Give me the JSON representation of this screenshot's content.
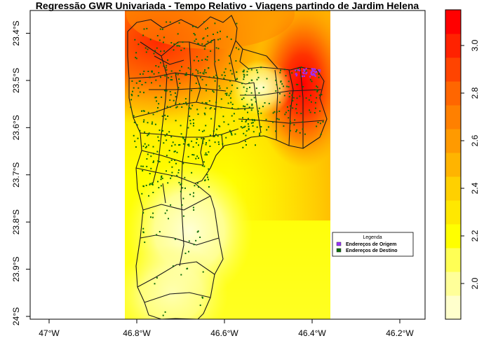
{
  "title": "Regressão GWR Univariada - Tempo Relativo - Viagens partindo de Jardim Helena",
  "map": {
    "x_ticks": [
      {
        "value": -47.0,
        "label": "47°W"
      },
      {
        "value": -46.8,
        "label": "46.8°W"
      },
      {
        "value": -46.6,
        "label": "46.6°W"
      },
      {
        "value": -46.4,
        "label": "46.4°W"
      },
      {
        "value": -46.2,
        "label": "46.2°W"
      }
    ],
    "y_ticks": [
      {
        "value": -23.4,
        "label": "23.4°S"
      },
      {
        "value": -23.5,
        "label": "23.5°S"
      },
      {
        "value": -23.6,
        "label": "23.6°S"
      },
      {
        "value": -23.7,
        "label": "23.7°S"
      },
      {
        "value": -23.8,
        "label": "23.8°S"
      },
      {
        "value": -23.9,
        "label": "23.9°S"
      },
      {
        "value": -24.0,
        "label": "24°S"
      }
    ],
    "raster_lon_range": [
      -46.825,
      -46.35
    ],
    "colors": {
      "origin": "#9b30ff",
      "destination": "#0a6b0a",
      "boundary": "#1a1a1a"
    }
  },
  "legend": {
    "title": "Legenda",
    "items": [
      {
        "label": "Endereços de Origem",
        "color": "#9b30ff"
      },
      {
        "label": "Endereços de Destino",
        "color": "#0a6b0a"
      }
    ]
  },
  "colorbar": {
    "tick_labels": [
      "2.0",
      "2.2",
      "2.4",
      "2.6",
      "2.8",
      "3.0"
    ],
    "tick_values": [
      2.0,
      2.2,
      2.4,
      2.6,
      2.8,
      3.0
    ],
    "range": [
      1.85,
      3.15
    ],
    "colors": [
      "#ffffcc",
      "#ffff99",
      "#ffff55",
      "#ffff00",
      "#ffe800",
      "#ffd000",
      "#ffb400",
      "#ff9a00",
      "#ff8000",
      "#ff6600",
      "#ff4400",
      "#ff2200",
      "#ff0000"
    ]
  }
}
